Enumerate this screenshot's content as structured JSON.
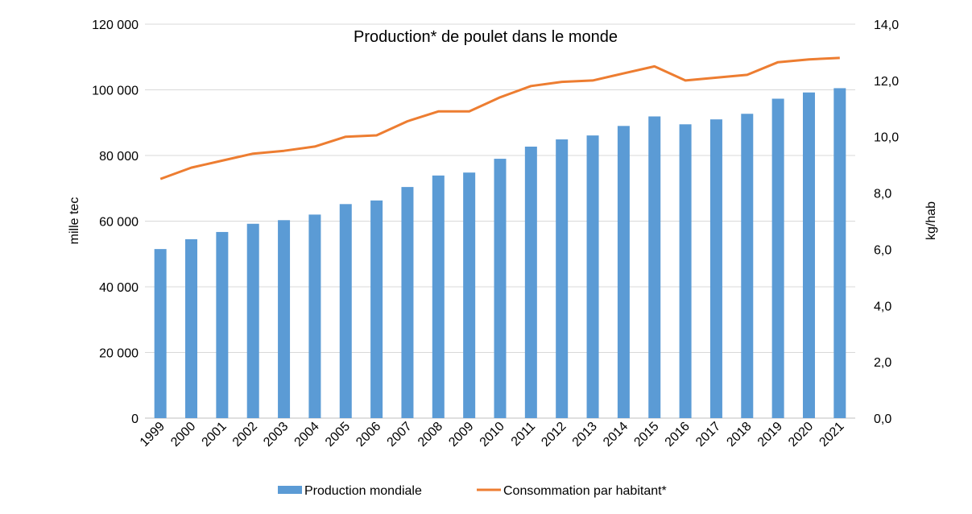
{
  "chart_data": {
    "type": "bar",
    "title": "Production* de poulet dans le monde",
    "categories": [
      "1999",
      "2000",
      "2001",
      "2002",
      "2003",
      "2004",
      "2005",
      "2006",
      "2007",
      "2008",
      "2009",
      "2010",
      "2011",
      "2012",
      "2013",
      "2014",
      "2015",
      "2016",
      "2017",
      "2018",
      "2019",
      "2020",
      "2021"
    ],
    "series": [
      {
        "name": "Production mondiale",
        "type": "bar",
        "axis": "left",
        "color": "#5b9bd5",
        "values": [
          51500,
          54500,
          56700,
          59200,
          60300,
          62000,
          65200,
          66300,
          70400,
          73900,
          74800,
          79000,
          82700,
          84900,
          86100,
          89000,
          91900,
          89500,
          91000,
          92700,
          97300,
          99200,
          100500
        ]
      },
      {
        "name": "Consommation par habitant*",
        "type": "line",
        "axis": "right",
        "color": "#ed7d31",
        "values": [
          8.5,
          8.9,
          9.15,
          9.4,
          9.5,
          9.65,
          10.0,
          10.05,
          10.55,
          10.9,
          10.9,
          11.4,
          11.8,
          11.95,
          12.0,
          12.25,
          12.5,
          12.0,
          12.1,
          12.2,
          12.65,
          12.75,
          12.8
        ]
      }
    ],
    "y_left": {
      "label": "mille tec",
      "ylim": [
        0,
        120000
      ],
      "ticks": [
        0,
        20000,
        40000,
        60000,
        80000,
        100000,
        120000
      ],
      "tick_labels": [
        "0",
        "20 000",
        "40 000",
        "60 000",
        "80 000",
        "100 000",
        "120 000"
      ]
    },
    "y_right": {
      "label": "kg/hab",
      "ylim": [
        0,
        14
      ],
      "ticks": [
        0,
        2,
        4,
        6,
        8,
        10,
        12,
        14
      ],
      "tick_labels": [
        "0,0",
        "2,0",
        "4,0",
        "6,0",
        "8,0",
        "10,0",
        "12,0",
        "14,0"
      ]
    },
    "grid": true,
    "legend": "bottom"
  }
}
